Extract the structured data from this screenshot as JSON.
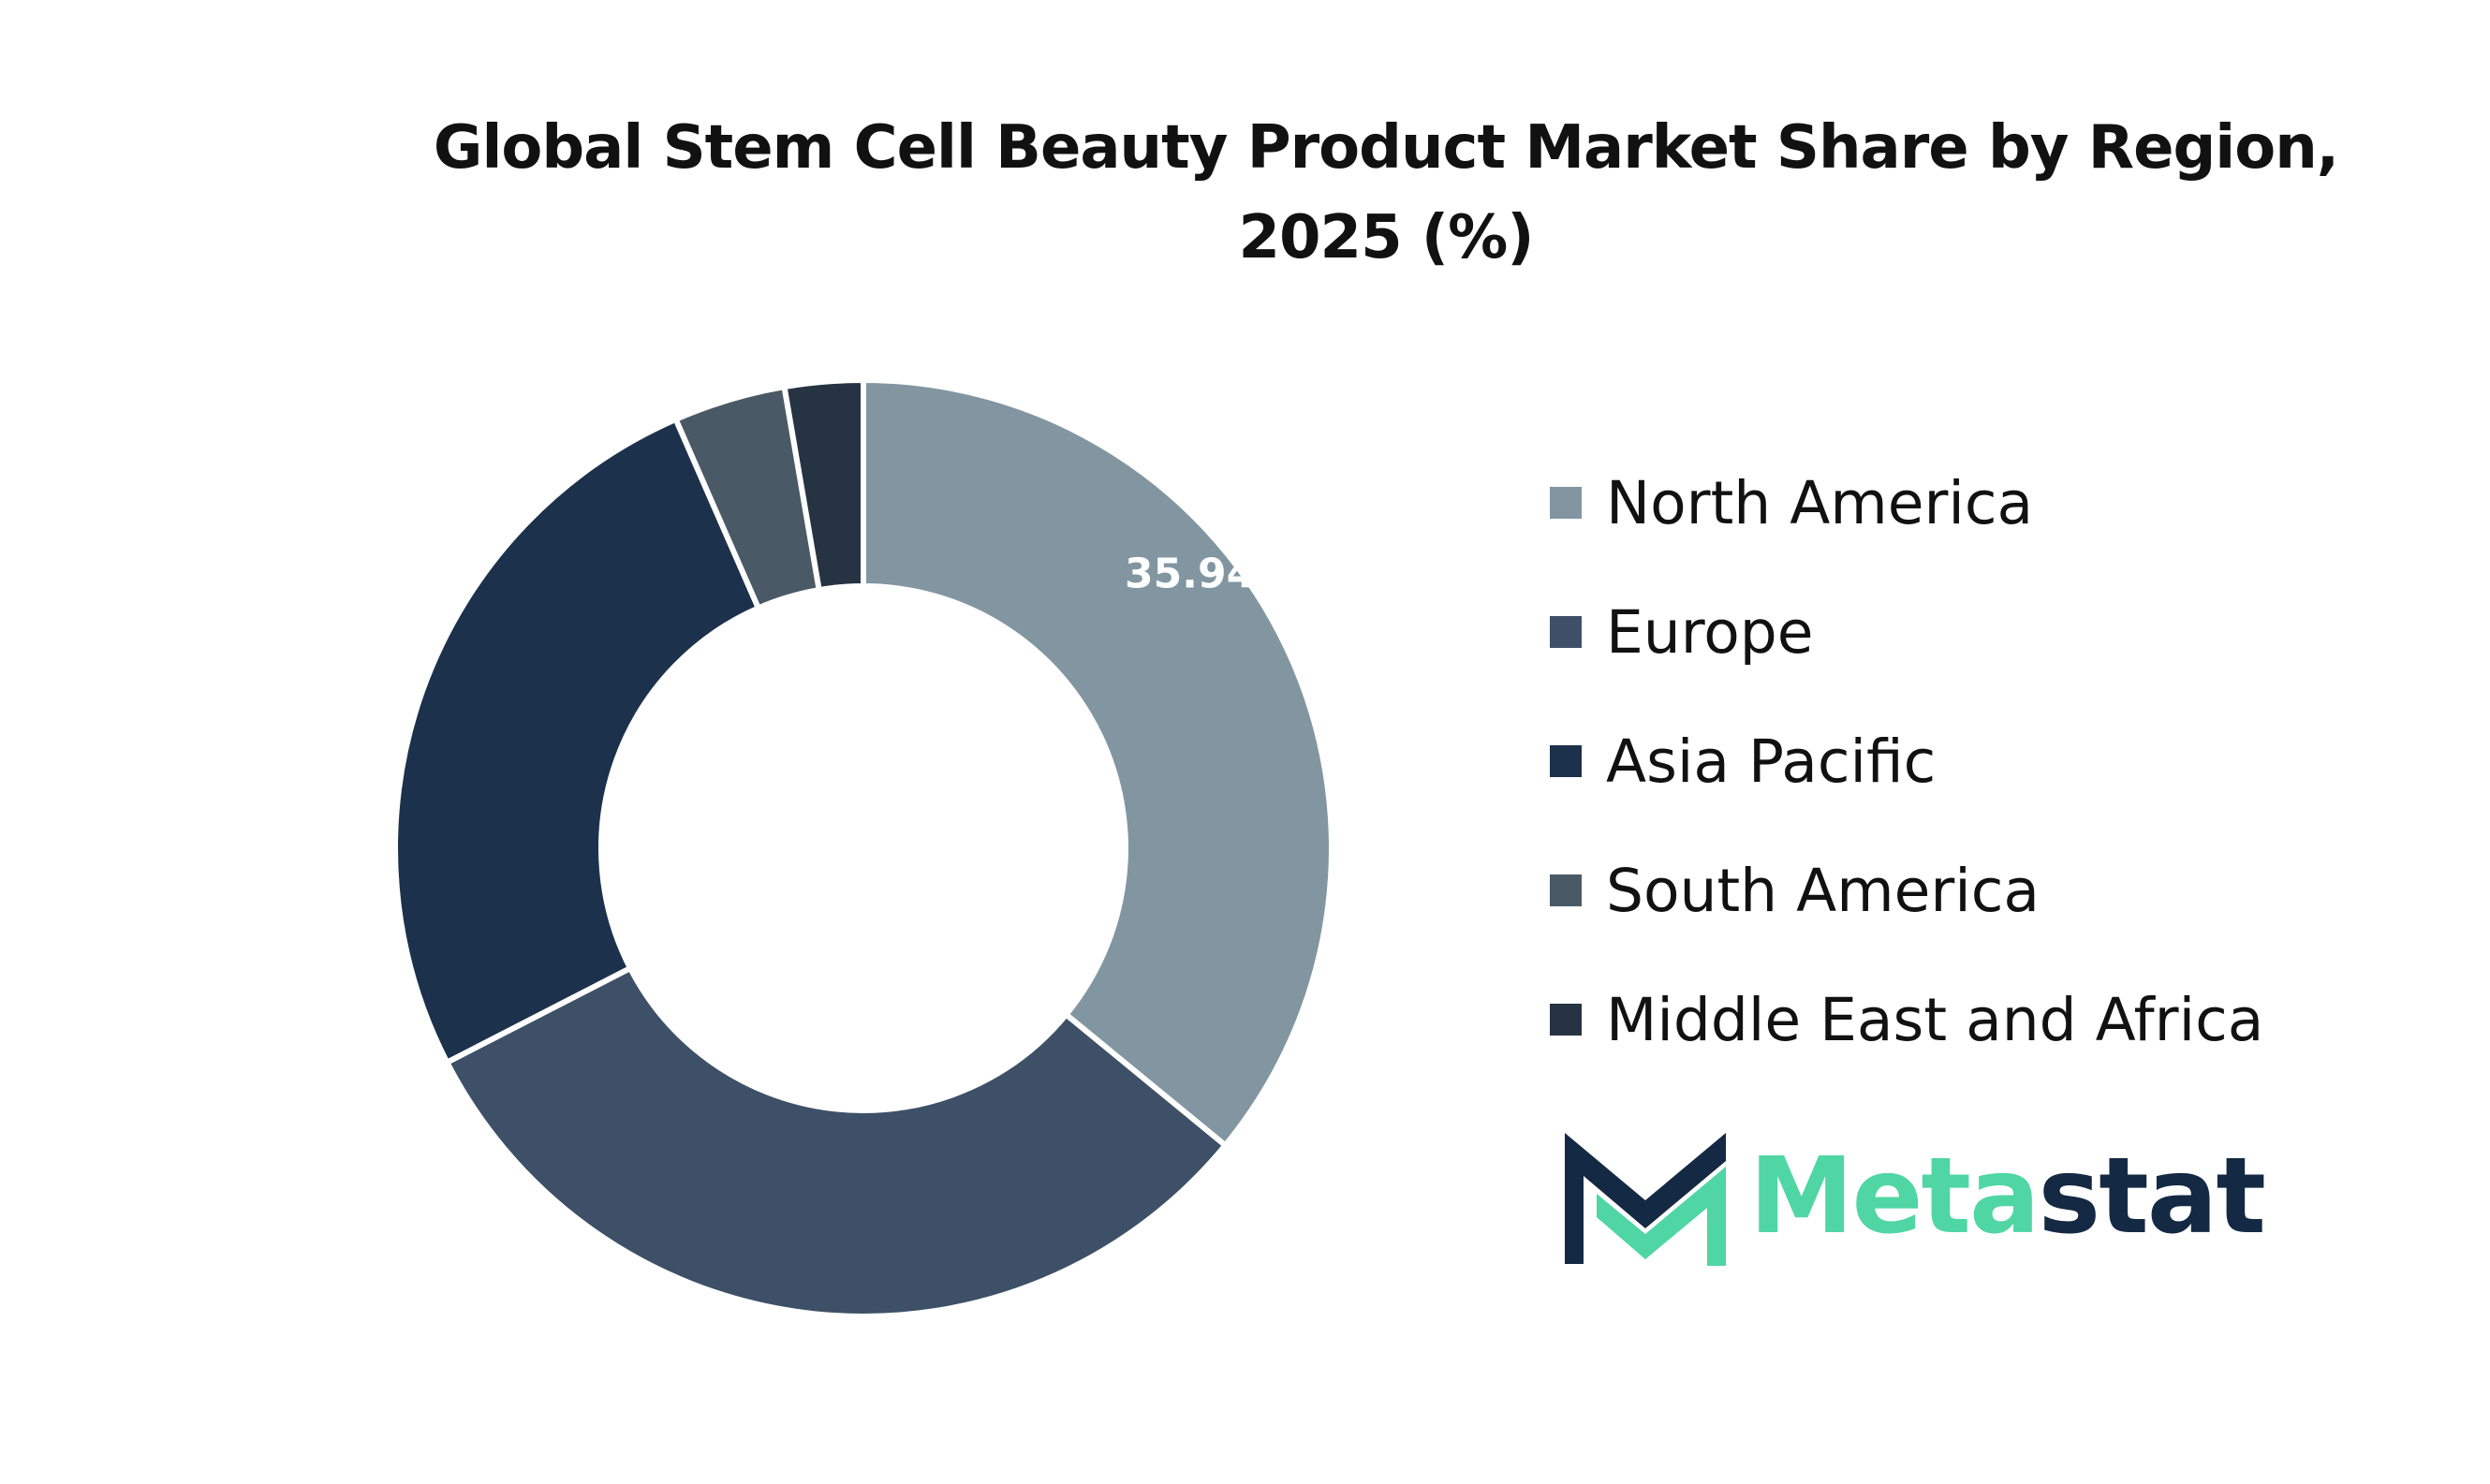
{
  "chart_data": {
    "type": "pie",
    "variant": "donut",
    "title_lines": [
      "Global Stem Cell Beauty Product Market Share by Region,",
      "2025 (%)"
    ],
    "categories": [
      "North America",
      "Europe",
      "Asia Pacific",
      "South America",
      "Middle East and Africa"
    ],
    "values": [
      35.94,
      31.5,
      26.0,
      3.86,
      2.7
    ],
    "colors": [
      "#8296a1",
      "#3d5068",
      "#1c314c",
      "#4a5966",
      "#263342"
    ],
    "data_labels": [
      "35.94%",
      "",
      "",
      "",
      ""
    ],
    "legend_position": "right"
  },
  "logo": {
    "text_part1": "Meta",
    "text_part2": "stat",
    "color_green": "#4fd6a4",
    "color_navy": "#142943"
  }
}
